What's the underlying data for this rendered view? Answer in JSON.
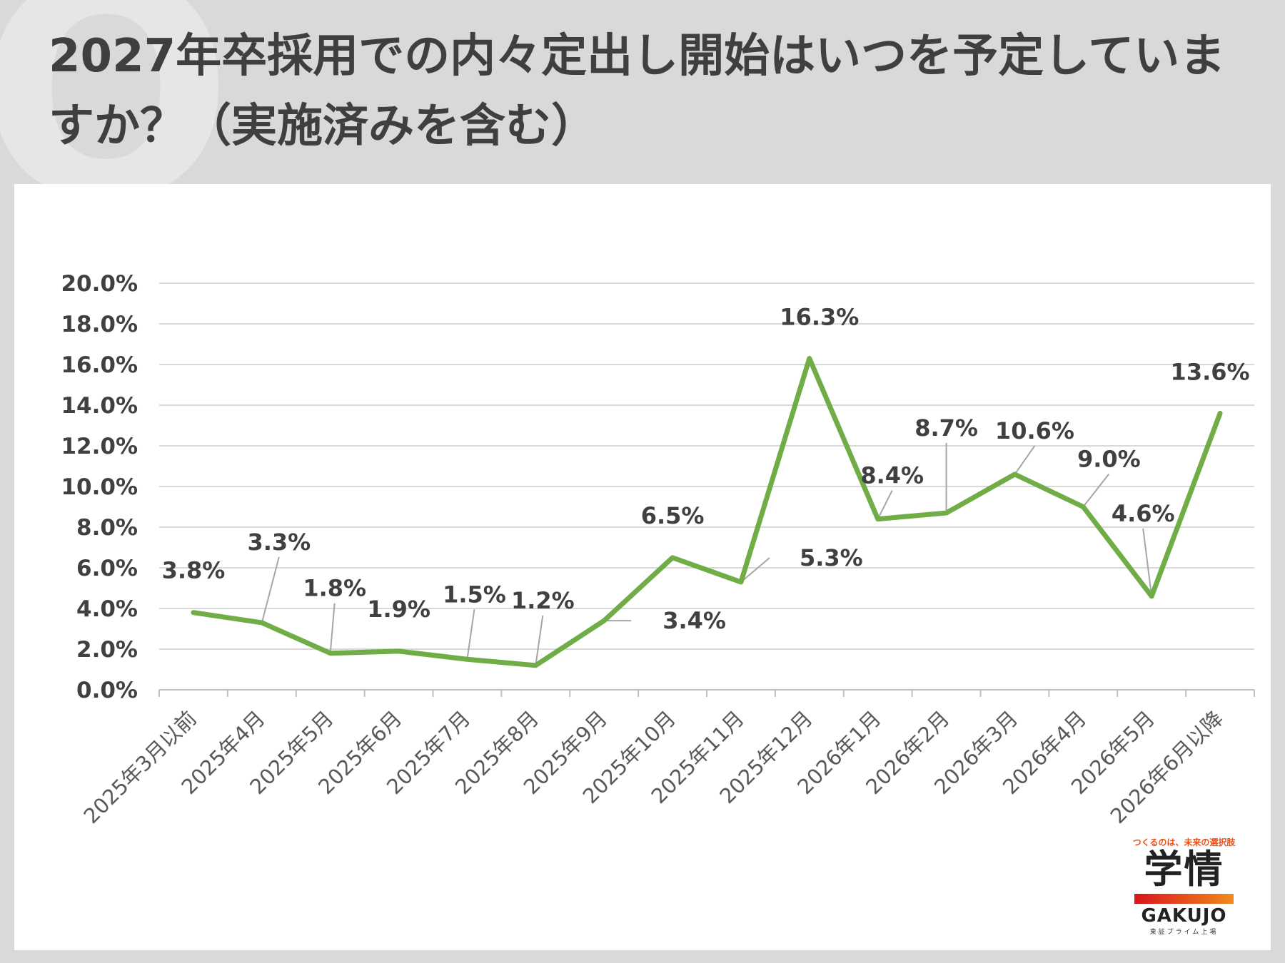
{
  "header": {
    "title": "2027年卒採用での内々定出し開始はいつを予定していますか？（実施済みを含む）"
  },
  "chart_data": {
    "type": "line",
    "title": "",
    "xlabel": "",
    "ylabel": "",
    "ylim": [
      0,
      20
    ],
    "y_ticks": [
      "0.0%",
      "2.0%",
      "4.0%",
      "6.0%",
      "8.0%",
      "10.0%",
      "12.0%",
      "14.0%",
      "16.0%",
      "18.0%",
      "20.0%"
    ],
    "categories": [
      "2025年3月以前",
      "2025年4月",
      "2025年5月",
      "2025年6月",
      "2025年7月",
      "2025年8月",
      "2025年9月",
      "2025年10月",
      "2025年11月",
      "2025年12月",
      "2026年1月",
      "2026年2月",
      "2026年3月",
      "2026年4月",
      "2026年5月",
      "2026年6月以降"
    ],
    "values": [
      3.8,
      3.3,
      1.8,
      1.9,
      1.5,
      1.2,
      3.4,
      6.5,
      5.3,
      16.3,
      8.4,
      8.7,
      10.6,
      9.0,
      4.6,
      13.6
    ],
    "data_labels": [
      "3.8%",
      "3.3%",
      "1.8%",
      "1.9%",
      "1.5%",
      "1.2%",
      "3.4%",
      "6.5%",
      "5.3%",
      "16.3%",
      "8.4%",
      "8.7%",
      "10.6%",
      "9.0%",
      "4.6%",
      "13.6%"
    ],
    "grid": true,
    "legend": "none",
    "colors": {
      "line": "#70ad47",
      "grid": "#d9d9d9",
      "text": "#404040",
      "leader": "#a6a6a6"
    }
  },
  "logo": {
    "tagline": "つくるのは、未来の選択肢",
    "kanji": "学情",
    "en": "GAKUJO",
    "listed": "東証プライム上場"
  }
}
